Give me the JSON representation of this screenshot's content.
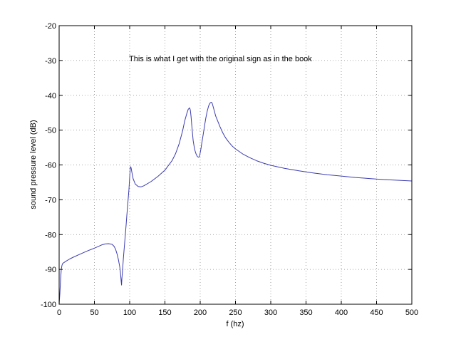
{
  "chart_data": {
    "type": "line",
    "title": "",
    "annotation": "This is what I get with the original sign as in the book",
    "xlabel": "f (hz)",
    "ylabel": "sound pressure level (dB)",
    "xlim": [
      0,
      500
    ],
    "ylim": [
      -100,
      -20
    ],
    "xticks": [
      0,
      50,
      100,
      150,
      200,
      250,
      300,
      350,
      400,
      450,
      500
    ],
    "yticks": [
      -100,
      -90,
      -80,
      -70,
      -60,
      -50,
      -40,
      -30,
      -20
    ],
    "grid": true,
    "line_color": "#3b3bb0",
    "series": [
      {
        "x": [
          0,
          1,
          2,
          3,
          4,
          5,
          7,
          10,
          15,
          20,
          30,
          40,
          50,
          60,
          65,
          70,
          75,
          78,
          80,
          82,
          84,
          86,
          87,
          88,
          88.5,
          89,
          90,
          91,
          92,
          93,
          94,
          95,
          96,
          97,
          98,
          99,
          100,
          101,
          102,
          103,
          105,
          108,
          112,
          116,
          120,
          130,
          140,
          150,
          160,
          165,
          170,
          175,
          178,
          181,
          183,
          185,
          186,
          187,
          188,
          190,
          192,
          194,
          196,
          198,
          199,
          200,
          201,
          202,
          204,
          206,
          208,
          210,
          212,
          214,
          216,
          217,
          218,
          220,
          222,
          225,
          228,
          232,
          236,
          240,
          245,
          250,
          260,
          270,
          280,
          290,
          300,
          320,
          340,
          360,
          380,
          400,
          420,
          440,
          460,
          480,
          500
        ],
        "y": [
          -100,
          -97,
          -93,
          -90,
          -88.8,
          -88.3,
          -88,
          -87.6,
          -87,
          -86.5,
          -85.6,
          -84.7,
          -83.9,
          -83,
          -82.7,
          -82.6,
          -82.8,
          -83.4,
          -84.2,
          -85.5,
          -87.2,
          -89.3,
          -91,
          -93.5,
          -94.5,
          -92.5,
          -90,
          -87,
          -84.5,
          -82,
          -79.5,
          -77,
          -74.5,
          -72,
          -69.5,
          -67,
          -63.5,
          -60.5,
          -60.8,
          -62,
          -64,
          -65.5,
          -66.2,
          -66.3,
          -66,
          -64.8,
          -63.3,
          -61.5,
          -58.8,
          -56.8,
          -54,
          -50.2,
          -47.4,
          -45.2,
          -44,
          -43.6,
          -44.2,
          -46,
          -48.5,
          -53,
          -55.5,
          -56.8,
          -57.6,
          -57.8,
          -57.5,
          -56.5,
          -55.4,
          -54,
          -51.5,
          -49,
          -46.5,
          -44.5,
          -43,
          -42.2,
          -42,
          -42.3,
          -43,
          -44.5,
          -46,
          -47.5,
          -49,
          -50.8,
          -52.2,
          -53.3,
          -54.5,
          -55.4,
          -56.8,
          -57.9,
          -58.8,
          -59.5,
          -60.1,
          -61,
          -61.7,
          -62.3,
          -62.8,
          -63.2,
          -63.6,
          -63.9,
          -64.2,
          -64.4,
          -64.6
        ]
      }
    ]
  }
}
